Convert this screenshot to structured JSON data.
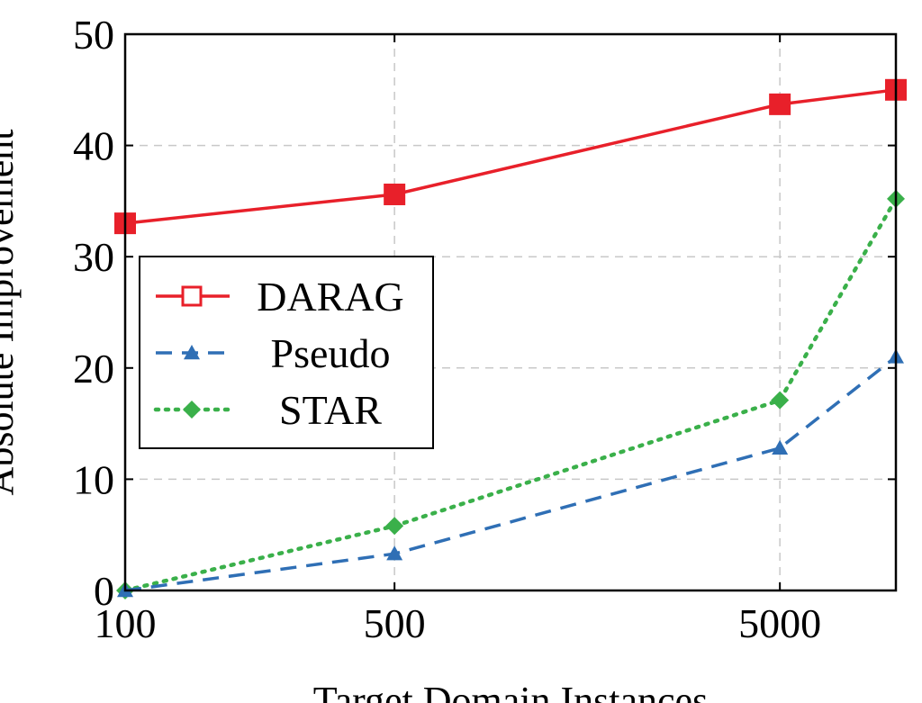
{
  "chart_data": {
    "type": "line",
    "xlabel": "Target Domain Instances",
    "ylabel": "Absolute Improvement",
    "x_scale": "log",
    "xlim": [
      100,
      10000
    ],
    "ylim": [
      0,
      50
    ],
    "x_ticks": [
      "100",
      "500",
      "5000"
    ],
    "y_ticks": [
      "0",
      "10",
      "20",
      "30",
      "40",
      "50"
    ],
    "grid": true,
    "legend_position": "center-left",
    "series": [
      {
        "name": "DARAG",
        "color": "#e8202a",
        "line_style": "solid",
        "marker": "square",
        "x": [
          100,
          500,
          5000,
          10000
        ],
        "y": [
          33,
          35.6,
          43.7,
          45
        ]
      },
      {
        "name": "Pseudo",
        "color": "#2f6fb5",
        "line_style": "dashed",
        "marker": "triangle",
        "x": [
          100,
          500,
          5000,
          10000
        ],
        "y": [
          0,
          3.3,
          12.8,
          21
        ]
      },
      {
        "name": "STAR",
        "color": "#3ab04a",
        "line_style": "dotted",
        "marker": "diamond",
        "x": [
          100,
          500,
          5000,
          10000
        ],
        "y": [
          0,
          5.8,
          17.1,
          35.2
        ]
      }
    ]
  }
}
